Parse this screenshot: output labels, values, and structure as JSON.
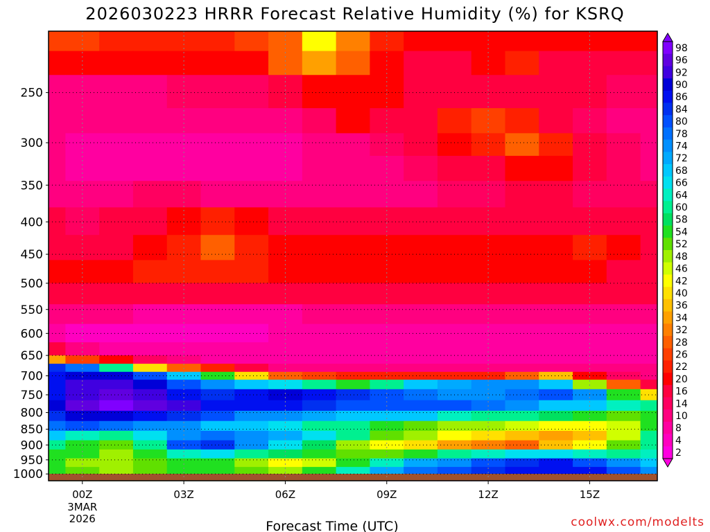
{
  "title": "2026030223 HRRR Forecast Relative Humidity (%) for KSRQ",
  "watermark": "coolwx.com/modelts",
  "chart_data": {
    "type": "heatmap",
    "title": "2026030223 HRRR Forecast Relative Humidity (%) for KSRQ",
    "xlabel": "Forecast Time (UTC)",
    "ylabel": "",
    "x_ticks": [
      "00Z",
      "03Z",
      "06Z",
      "09Z",
      "12Z",
      "15Z"
    ],
    "x_tick_hours": [
      0,
      3,
      6,
      9,
      12,
      15
    ],
    "x_date_label": [
      "3MAR",
      "2026"
    ],
    "xlim_hours": [
      -1,
      17
    ],
    "y_ticks": [
      250,
      300,
      350,
      400,
      450,
      500,
      550,
      600,
      650,
      700,
      750,
      800,
      850,
      900,
      950,
      1000
    ],
    "ylim_hpa": [
      200,
      1025
    ],
    "y_scale": "log-pressure",
    "grid": "dotted",
    "colorbar_levels": [
      98,
      96,
      92,
      90,
      86,
      84,
      80,
      78,
      74,
      72,
      68,
      66,
      64,
      60,
      58,
      54,
      52,
      48,
      46,
      42,
      40,
      36,
      34,
      32,
      28,
      26,
      22,
      20,
      16,
      14,
      10,
      8,
      4,
      2
    ],
    "colorbar_colors": [
      "#8000ff",
      "#6000e0",
      "#4000e0",
      "#0000d8",
      "#0010f0",
      "#0030f0",
      "#0050ff",
      "#0070ff",
      "#0090ff",
      "#00aaff",
      "#00c8ff",
      "#00e0f0",
      "#00f0c0",
      "#00f090",
      "#00e060",
      "#20e020",
      "#60e000",
      "#a0f000",
      "#d0ff00",
      "#ffff00",
      "#ffe000",
      "#ffc000",
      "#ffa000",
      "#ff8000",
      "#ff6000",
      "#ff4000",
      "#ff2000",
      "#ff0000",
      "#ff0040",
      "#ff0060",
      "#ff0080",
      "#ff00a0",
      "#ff00c0",
      "#ff00e0"
    ],
    "column_hours": [
      -1,
      0,
      1,
      2,
      3,
      4,
      5,
      6,
      7,
      8,
      9,
      10,
      11,
      12,
      13,
      14,
      15,
      16,
      17
    ],
    "rows": [
      {
        "p": 210,
        "rh": [
          26,
          26,
          24,
          22,
          22,
          24,
          26,
          30,
          42,
          32,
          22,
          20,
          20,
          20,
          20,
          20,
          20,
          20,
          20
        ]
      },
      {
        "p": 220,
        "rh": [
          20,
          20,
          20,
          20,
          20,
          20,
          20,
          28,
          34,
          28,
          20,
          18,
          18,
          20,
          24,
          18,
          18,
          16,
          16
        ]
      },
      {
        "p": 250,
        "rh": [
          12,
          12,
          12,
          12,
          14,
          14,
          14,
          16,
          20,
          20,
          20,
          18,
          16,
          16,
          16,
          16,
          16,
          14,
          14
        ]
      },
      {
        "p": 280,
        "rh": [
          10,
          10,
          10,
          10,
          10,
          10,
          10,
          10,
          14,
          20,
          16,
          18,
          24,
          26,
          22,
          18,
          14,
          12,
          12
        ]
      },
      {
        "p": 300,
        "rh": [
          10,
          8,
          8,
          8,
          8,
          8,
          8,
          8,
          10,
          12,
          14,
          16,
          20,
          24,
          30,
          22,
          16,
          14,
          12
        ]
      },
      {
        "p": 330,
        "rh": [
          10,
          8,
          8,
          8,
          8,
          8,
          8,
          8,
          10,
          10,
          12,
          14,
          16,
          18,
          20,
          20,
          16,
          14,
          12
        ]
      },
      {
        "p": 360,
        "rh": [
          12,
          10,
          12,
          14,
          14,
          12,
          12,
          12,
          12,
          12,
          12,
          12,
          14,
          14,
          16,
          16,
          14,
          14,
          14
        ]
      },
      {
        "p": 400,
        "rh": [
          16,
          14,
          16,
          18,
          20,
          22,
          20,
          18,
          16,
          16,
          16,
          16,
          16,
          16,
          16,
          16,
          16,
          16,
          16
        ]
      },
      {
        "p": 440,
        "rh": [
          18,
          18,
          18,
          20,
          22,
          28,
          24,
          20,
          20,
          20,
          20,
          20,
          20,
          20,
          20,
          20,
          22,
          20,
          18
        ]
      },
      {
        "p": 480,
        "rh": [
          20,
          20,
          20,
          22,
          22,
          24,
          22,
          20,
          20,
          20,
          20,
          20,
          20,
          20,
          20,
          20,
          20,
          18,
          18
        ]
      },
      {
        "p": 520,
        "rh": [
          16,
          16,
          16,
          16,
          16,
          16,
          16,
          16,
          16,
          16,
          16,
          16,
          16,
          16,
          16,
          16,
          16,
          16,
          16
        ]
      },
      {
        "p": 560,
        "rh": [
          10,
          10,
          10,
          8,
          8,
          8,
          8,
          8,
          10,
          10,
          10,
          10,
          10,
          10,
          10,
          10,
          10,
          10,
          10
        ]
      },
      {
        "p": 600,
        "rh": [
          8,
          6,
          4,
          4,
          4,
          6,
          6,
          8,
          8,
          8,
          8,
          8,
          8,
          8,
          8,
          8,
          8,
          8,
          8
        ]
      },
      {
        "p": 640,
        "rh": [
          16,
          10,
          8,
          8,
          8,
          8,
          8,
          8,
          8,
          8,
          8,
          8,
          8,
          8,
          8,
          8,
          8,
          8,
          8
        ]
      },
      {
        "p": 660,
        "rh": [
          34,
          26,
          20,
          14,
          10,
          8,
          8,
          8,
          8,
          8,
          8,
          8,
          8,
          8,
          8,
          8,
          8,
          8,
          8
        ]
      },
      {
        "p": 680,
        "rh": [
          84,
          78,
          60,
          40,
          30,
          22,
          16,
          12,
          10,
          10,
          10,
          10,
          10,
          10,
          10,
          10,
          10,
          12,
          10
        ]
      },
      {
        "p": 700,
        "rh": [
          88,
          90,
          90,
          80,
          68,
          54,
          40,
          30,
          26,
          24,
          24,
          24,
          24,
          24,
          30,
          36,
          20,
          14,
          12
        ]
      },
      {
        "p": 720,
        "rh": [
          86,
          92,
          94,
          90,
          80,
          74,
          70,
          66,
          60,
          56,
          62,
          70,
          72,
          74,
          76,
          70,
          48,
          28,
          18
        ]
      },
      {
        "p": 750,
        "rh": [
          88,
          94,
          96,
          94,
          88,
          84,
          86,
          90,
          88,
          84,
          80,
          78,
          76,
          74,
          78,
          80,
          74,
          56,
          40
        ]
      },
      {
        "p": 780,
        "rh": [
          90,
          96,
          98,
          96,
          92,
          88,
          86,
          86,
          84,
          82,
          80,
          80,
          82,
          78,
          74,
          70,
          68,
          64,
          60
        ]
      },
      {
        "p": 810,
        "rh": [
          84,
          90,
          90,
          88,
          84,
          80,
          76,
          74,
          72,
          70,
          70,
          68,
          64,
          62,
          60,
          58,
          54,
          52,
          56
        ]
      },
      {
        "p": 840,
        "rh": [
          78,
          80,
          78,
          76,
          74,
          70,
          68,
          66,
          62,
          60,
          56,
          52,
          50,
          48,
          46,
          44,
          42,
          46,
          56
        ]
      },
      {
        "p": 870,
        "rh": [
          70,
          64,
          60,
          66,
          74,
          78,
          76,
          72,
          66,
          60,
          52,
          48,
          42,
          40,
          36,
          34,
          38,
          46,
          60
        ]
      },
      {
        "p": 900,
        "rh": [
          60,
          56,
          52,
          62,
          80,
          84,
          76,
          66,
          58,
          50,
          44,
          40,
          34,
          32,
          30,
          36,
          44,
          52,
          62
        ]
      },
      {
        "p": 930,
        "rh": [
          56,
          54,
          50,
          56,
          64,
          66,
          62,
          58,
          54,
          52,
          52,
          56,
          60,
          64,
          66,
          66,
          64,
          62,
          64
        ]
      },
      {
        "p": 960,
        "rh": [
          54,
          50,
          48,
          52,
          56,
          54,
          50,
          44,
          46,
          56,
          64,
          72,
          76,
          80,
          84,
          86,
          80,
          74,
          70
        ]
      },
      {
        "p": 990,
        "rh": [
          56,
          52,
          50,
          52,
          54,
          54,
          52,
          50,
          56,
          64,
          72,
          78,
          82,
          84,
          86,
          88,
          86,
          80,
          76
        ]
      },
      {
        "p": 1010,
        "rh": [
          60,
          56,
          54,
          56,
          60,
          60,
          58,
          58,
          64,
          72,
          80,
          84,
          86,
          88,
          88,
          90,
          88,
          84,
          80
        ]
      }
    ]
  }
}
